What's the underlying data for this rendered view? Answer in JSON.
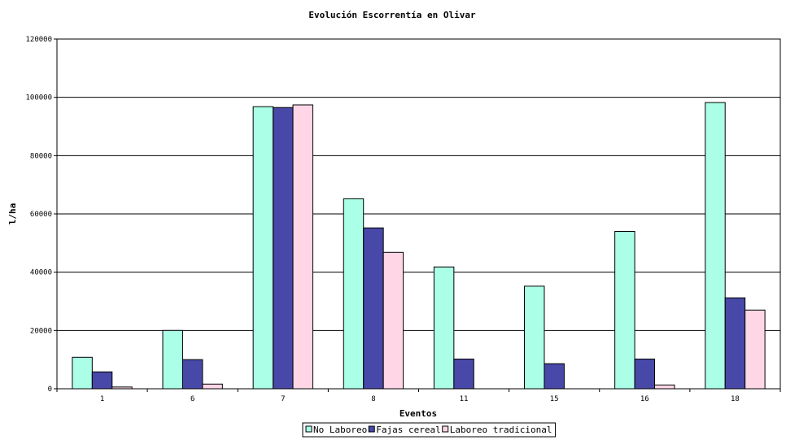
{
  "chart_data": {
    "type": "bar",
    "title": "Evolución Escorrentía en Olivar",
    "xlabel": "Eventos",
    "ylabel": "l/ha",
    "ylim": [
      0,
      120000
    ],
    "yticks": [
      0,
      20000,
      40000,
      60000,
      80000,
      100000,
      120000
    ],
    "grid": true,
    "legend_position": "bottom",
    "categories": [
      "1",
      "6",
      "7",
      "8",
      "11",
      "15",
      "16",
      "18"
    ],
    "series": [
      {
        "name": "No Laboreo",
        "color": "#aaffe6",
        "values": [
          10800,
          20000,
          96800,
          65200,
          41800,
          35200,
          54000,
          98200
        ]
      },
      {
        "name": "Fajas cereal",
        "color": "#4848a8",
        "values": [
          5800,
          10000,
          96500,
          55200,
          10200,
          8600,
          10200,
          31200
        ]
      },
      {
        "name": "Laboreo tradicional",
        "color": "#ffd6e6",
        "values": [
          600,
          1600,
          97400,
          46800,
          0,
          0,
          1300,
          27000
        ]
      }
    ]
  }
}
